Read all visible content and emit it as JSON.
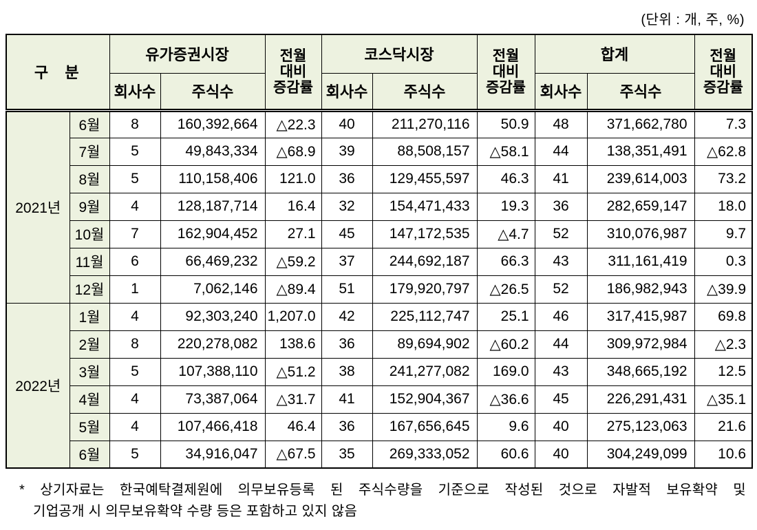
{
  "unit_note": "(단위 : 개, 주, %)",
  "table": {
    "header": {
      "gubun": "구  분",
      "kospi": "유가증권시장",
      "kosdaq": "코스닥시장",
      "total": "합계",
      "mom": "전월\n대비\n증감률",
      "company": "회사수",
      "shares": "주식수"
    },
    "sections": [
      {
        "year": "2021년",
        "rows": [
          {
            "month": "6월",
            "cells": [
              "8",
              "160,392,664",
              "△22.3",
              "40",
              "211,270,116",
              "50.9",
              "48",
              "371,662,780",
              "7.3"
            ]
          },
          {
            "month": "7월",
            "cells": [
              "5",
              "49,843,334",
              "△68.9",
              "39",
              "88,508,157",
              "△58.1",
              "44",
              "138,351,491",
              "△62.8"
            ]
          },
          {
            "month": "8월",
            "cells": [
              "5",
              "110,158,406",
              "121.0",
              "36",
              "129,455,597",
              "46.3",
              "41",
              "239,614,003",
              "73.2"
            ]
          },
          {
            "month": "9월",
            "cells": [
              "4",
              "128,187,714",
              "16.4",
              "32",
              "154,471,433",
              "19.3",
              "36",
              "282,659,147",
              "18.0"
            ]
          },
          {
            "month": "10월",
            "cells": [
              "7",
              "162,904,452",
              "27.1",
              "45",
              "147,172,535",
              "△4.7",
              "52",
              "310,076,987",
              "9.7"
            ]
          },
          {
            "month": "11월",
            "cells": [
              "6",
              "66,469,232",
              "△59.2",
              "37",
              "244,692,187",
              "66.3",
              "43",
              "311,161,419",
              "0.3"
            ]
          },
          {
            "month": "12월",
            "cells": [
              "1",
              "7,062,146",
              "△89.4",
              "51",
              "179,920,797",
              "△26.5",
              "52",
              "186,982,943",
              "△39.9"
            ]
          }
        ]
      },
      {
        "year": "2022년",
        "rows": [
          {
            "month": "1월",
            "cells": [
              "4",
              "92,303,240",
              "1,207.0",
              "42",
              "225,112,747",
              "25.1",
              "46",
              "317,415,987",
              "69.8"
            ]
          },
          {
            "month": "2월",
            "cells": [
              "8",
              "220,278,082",
              "138.6",
              "36",
              "89,694,902",
              "△60.2",
              "44",
              "309,972,984",
              "△2.3"
            ]
          },
          {
            "month": "3월",
            "cells": [
              "5",
              "107,388,110",
              "△51.2",
              "38",
              "241,277,082",
              "169.0",
              "43",
              "348,665,192",
              "12.5"
            ]
          },
          {
            "month": "4월",
            "cells": [
              "4",
              "73,387,064",
              "△31.7",
              "41",
              "152,904,367",
              "△36.6",
              "45",
              "226,291,431",
              "△35.1"
            ]
          },
          {
            "month": "5월",
            "cells": [
              "4",
              "107,466,418",
              "46.4",
              "36",
              "167,656,645",
              "9.6",
              "40",
              "275,123,063",
              "21.6"
            ]
          },
          {
            "month": "6월",
            "cells": [
              "5",
              "34,916,047",
              "△67.5",
              "35",
              "269,333,052",
              "60.6",
              "40",
              "304,249,099",
              "10.6"
            ]
          }
        ]
      }
    ]
  },
  "footnote": {
    "line1": "* 상기자료는 한국예탁결제원에 의무보유등록 된 주식수량을 기준으로 작성된 것으로 자발적 보유확약 및",
    "line2": "기업공개 시 의무보유확약 수량 등은 포함하고 있지 않음"
  }
}
